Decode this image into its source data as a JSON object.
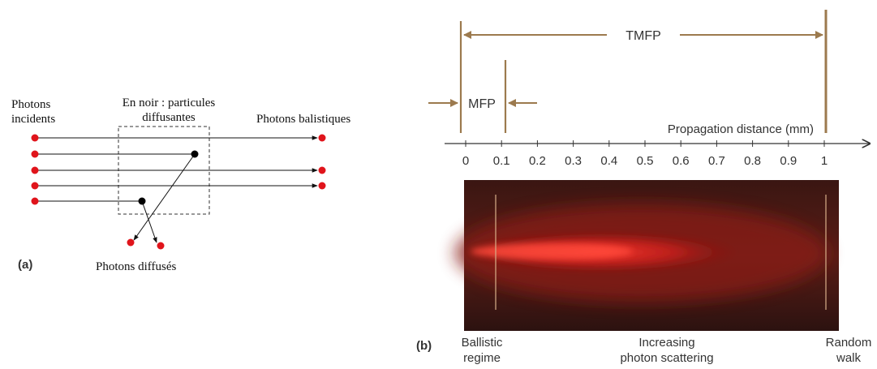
{
  "panel_a": {
    "label": "(a)",
    "incident_label_1": "Photons",
    "incident_label_2": "incidents",
    "box_label_1": "En noir : particules",
    "box_label_2": "diffusantes",
    "ballistic_label": "Photons balistiques",
    "diffused_label": "Photons diffusés",
    "photon_color": "#e0141b",
    "particle_color": "#000000"
  },
  "panel_b": {
    "label": "(b)",
    "tmfp_label": "TMFP",
    "mfp_label": "MFP",
    "axis_title": "Propagation distance (mm)",
    "ticks": [
      "0",
      "0.1",
      "0.2",
      "0.3",
      "0.4",
      "0.5",
      "0.6",
      "0.7",
      "0.8",
      "0.9",
      "1"
    ],
    "regime_left_1": "Ballistic",
    "regime_left_2": "regime",
    "regime_mid_1": "Increasing",
    "regime_mid_2": "photon scattering",
    "regime_right_1": "Random",
    "regime_right_2": "walk",
    "marker_color": "#9c7a4e",
    "beam_color": "#ff2a2a"
  }
}
